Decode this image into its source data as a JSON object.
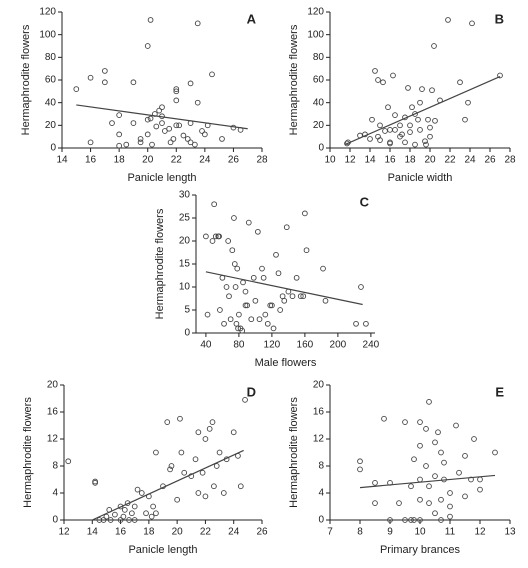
{
  "chart_data": [
    {
      "type": "scatter",
      "label": "A",
      "xlabel": "Panicle length",
      "ylabel": "Hermaphrodite flowers",
      "color": "#444444",
      "xlim": [
        14,
        28
      ],
      "xticks": [
        14,
        16,
        18,
        20,
        22,
        24,
        26,
        28
      ],
      "ylim": [
        0,
        120
      ],
      "yticks": [
        0,
        20,
        40,
        60,
        80,
        100,
        120
      ],
      "x": [
        15,
        16,
        17,
        17,
        16,
        17.5,
        18,
        18,
        18.5,
        19,
        19,
        19.5,
        19.5,
        20,
        20,
        20.2,
        20,
        20.3,
        20.5,
        20.6,
        20.8,
        21,
        21,
        21,
        21.2,
        21.5,
        21.6,
        22,
        22,
        22,
        22,
        22.2,
        22.5,
        22.8,
        23,
        23,
        23,
        23.3,
        23.5,
        23.5,
        23.8,
        24,
        24.2,
        24.5,
        25.2,
        26,
        26.5,
        20.2,
        21.8,
        18
      ],
      "y": [
        52,
        62,
        68,
        58,
        5,
        22,
        12,
        29,
        3,
        58,
        22,
        8,
        5,
        12,
        25,
        113,
        90,
        3,
        30,
        19,
        33,
        36,
        28,
        22,
        15,
        17,
        5,
        52,
        42,
        50,
        20,
        20,
        11,
        8,
        57,
        22,
        5,
        3,
        110,
        40,
        15,
        12,
        20,
        65,
        8,
        18,
        16,
        26,
        8,
        2
      ],
      "fit_line": {
        "x": [
          15,
          27
        ],
        "y": [
          38,
          17
        ]
      }
    },
    {
      "type": "scatter",
      "label": "B",
      "xlabel": "Panicle width",
      "ylabel": "Hermaphrodite flowers",
      "color": "#444444",
      "xlim": [
        10,
        28
      ],
      "xticks": [
        10,
        12,
        14,
        16,
        18,
        20,
        22,
        24,
        26,
        28
      ],
      "ylim": [
        0,
        120
      ],
      "yticks": [
        0,
        20,
        40,
        60,
        80,
        100,
        120
      ],
      "x": [
        11.8,
        11.7,
        13,
        13.5,
        14,
        14.2,
        14.5,
        14.8,
        14.8,
        15,
        15,
        15.3,
        15.5,
        15.8,
        16,
        16,
        16.3,
        16.5,
        16.5,
        17,
        17,
        17.2,
        17.5,
        17.5,
        17.8,
        18,
        18,
        18.2,
        18.5,
        18.8,
        19,
        19,
        19.2,
        19.5,
        19.6,
        19.8,
        20,
        20,
        20.2,
        20.4,
        20.5,
        21,
        21.8,
        23,
        23.5,
        23.8,
        24.2,
        27,
        18.5,
        16
      ],
      "y": [
        5,
        4,
        11,
        12,
        8,
        25,
        68,
        60,
        10,
        7,
        20,
        58,
        15,
        36,
        16,
        5,
        64,
        29,
        16,
        20,
        10,
        12,
        27,
        5,
        53,
        20,
        14,
        36,
        30,
        25,
        40,
        16,
        52,
        6,
        3,
        25,
        18,
        10,
        51,
        90,
        24,
        42,
        113,
        58,
        25,
        40,
        110,
        64,
        3,
        4
      ],
      "fit_line": {
        "x": [
          11.5,
          27
        ],
        "y": [
          3,
          63
        ]
      }
    },
    {
      "type": "scatter",
      "label": "C",
      "xlabel": "Male flowers",
      "ylabel": "Hermaphrodite flowers",
      "color": "#444444",
      "xlim": [
        28,
        245
      ],
      "xticks": [
        40,
        80,
        120,
        160,
        200,
        240
      ],
      "ylim": [
        0,
        30
      ],
      "yticks": [
        0,
        5,
        10,
        15,
        20,
        25,
        30
      ],
      "x": [
        40,
        42,
        48,
        50,
        52,
        55,
        56,
        57,
        60,
        62,
        65,
        68,
        70,
        72,
        74,
        75,
        76,
        77,
        78,
        79,
        80,
        82,
        84,
        85,
        88,
        90,
        92,
        95,
        98,
        100,
        103,
        105,
        108,
        110,
        112,
        115,
        118,
        120,
        122,
        125,
        128,
        130,
        133,
        135,
        138,
        140,
        145,
        150,
        155,
        158,
        160,
        162,
        182,
        185,
        222,
        228,
        234,
        88,
        67
      ],
      "y": [
        21,
        4,
        20,
        28,
        21,
        21,
        21,
        5,
        12,
        2,
        10,
        8,
        3,
        18,
        25,
        15,
        10,
        2,
        14,
        1,
        4,
        1,
        0.5,
        11,
        6,
        6,
        24,
        3,
        12,
        7,
        22,
        3,
        14,
        12,
        4,
        2,
        6,
        6,
        1,
        17,
        13,
        5,
        8,
        7,
        23,
        9,
        8,
        12,
        8,
        8,
        26,
        18,
        14,
        7,
        2,
        10,
        2,
        9,
        20
      ],
      "fit_line": {
        "x": [
          40,
          230
        ],
        "y": [
          13.3,
          6.2
        ]
      }
    },
    {
      "type": "scatter",
      "label": "D",
      "xlabel": "Panicle length",
      "ylabel": "Hermaphrodite flowers",
      "color": "#444444",
      "xlim": [
        12,
        26
      ],
      "xticks": [
        12,
        14,
        16,
        18,
        20,
        22,
        24,
        26
      ],
      "ylim": [
        0,
        20
      ],
      "yticks": [
        0,
        4,
        8,
        12,
        16,
        20
      ],
      "x": [
        12.3,
        14.2,
        14.2,
        14.5,
        14.8,
        15,
        15.2,
        15.3,
        15.6,
        16,
        16,
        16.2,
        16.3,
        16.5,
        16.6,
        16.8,
        17,
        17,
        17.2,
        17.5,
        17.8,
        18,
        18.2,
        18.3,
        18.5,
        18.5,
        19,
        19.3,
        19.5,
        19.6,
        20,
        20.2,
        20.3,
        20.5,
        21,
        21.3,
        21.5,
        21.5,
        21.8,
        22,
        22,
        22.3,
        22.5,
        22.6,
        22.8,
        23,
        23.3,
        23.5,
        24,
        24.3,
        24.5,
        24.8
      ],
      "y": [
        8.7,
        5.7,
        5.5,
        0,
        0,
        0.5,
        1.5,
        0,
        0.8,
        0,
        2,
        0.5,
        1.5,
        2.5,
        0,
        1,
        0,
        2,
        4.5,
        4,
        1,
        3.5,
        0.5,
        2,
        10,
        1,
        5,
        14.5,
        7.5,
        8,
        3,
        15,
        10,
        7,
        6.5,
        9,
        13,
        4,
        7,
        12,
        3.5,
        13.5,
        14.5,
        5,
        8,
        10,
        4,
        9,
        13,
        9.5,
        5,
        17.8
      ],
      "fit_line": {
        "x": [
          14,
          24.7
        ],
        "y": [
          0,
          10.3
        ]
      }
    },
    {
      "type": "scatter",
      "label": "E",
      "xlabel": "Primary brances",
      "ylabel": "Hermaphrodite flowers",
      "color": "#444444",
      "xlim": [
        7,
        13
      ],
      "xticks": [
        7,
        8,
        9,
        10,
        11,
        12,
        13
      ],
      "ylim": [
        0,
        20
      ],
      "yticks": [
        0,
        4,
        8,
        12,
        16,
        20
      ],
      "x": [
        8,
        8,
        8.5,
        8.5,
        8.8,
        9,
        9,
        9.3,
        9.5,
        9.5,
        9.7,
        9.8,
        9.8,
        10,
        10,
        10,
        10,
        10,
        10.2,
        10.2,
        10.3,
        10.3,
        10.3,
        10.5,
        10.5,
        10.6,
        10.7,
        10.7,
        10.7,
        10.8,
        10.8,
        11,
        11,
        11,
        11.2,
        11.3,
        11.5,
        11.5,
        11.7,
        11.8,
        12,
        12.5,
        9.7,
        10.5,
        12
      ],
      "y": [
        8.7,
        7.5,
        2.5,
        5.5,
        15,
        0,
        5.5,
        2.5,
        0,
        14.5,
        0,
        9,
        0,
        0,
        3,
        6,
        14.5,
        11,
        13.5,
        8,
        17.5,
        5,
        2.5,
        1,
        6.5,
        13,
        10,
        3,
        0,
        6,
        8.5,
        2,
        0.5,
        4,
        14,
        7,
        9.5,
        3.5,
        6,
        12,
        4.5,
        10,
        5,
        11.5,
        6
      ],
      "fit_line": {
        "x": [
          8,
          12.5
        ],
        "y": [
          4.8,
          6.6
        ]
      }
    }
  ]
}
